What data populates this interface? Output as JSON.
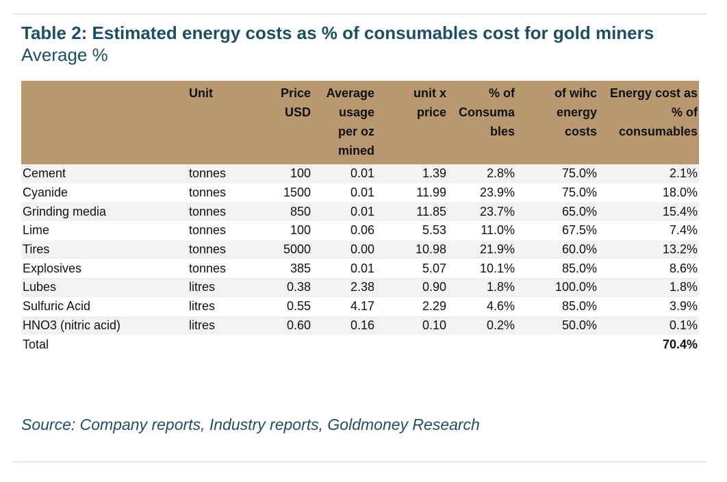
{
  "title": "Table 2: Estimated energy costs as % of consumables cost for gold miners",
  "subtitle": "Average %",
  "table": {
    "headers": [
      {
        "lines": [
          ""
        ]
      },
      {
        "lines": [
          "Unit"
        ]
      },
      {
        "lines": [
          "Price",
          "USD"
        ]
      },
      {
        "lines": [
          "Average",
          "usage",
          "per oz",
          "mined"
        ]
      },
      {
        "lines": [
          "unit x",
          "price"
        ]
      },
      {
        "lines": [
          "% of",
          "Consuma",
          "bles"
        ]
      },
      {
        "lines": [
          "of wihc",
          "energy",
          "costs"
        ]
      },
      {
        "lines": [
          "Energy cost as",
          "% of",
          "consumables"
        ]
      }
    ],
    "rows": [
      {
        "name": "Cement",
        "unit": "tonnes",
        "price": "100",
        "usage": "0.01",
        "unit_price": "1.39",
        "pct_consumables": "2.8%",
        "energy_share": "75.0%",
        "energy_cost": "2.1%"
      },
      {
        "name": "Cyanide",
        "unit": "tonnes",
        "price": "1500",
        "usage": "0.01",
        "unit_price": "11.99",
        "pct_consumables": "23.9%",
        "energy_share": "75.0%",
        "energy_cost": "18.0%"
      },
      {
        "name": "Grinding media",
        "unit": "tonnes",
        "price": "850",
        "usage": "0.01",
        "unit_price": "11.85",
        "pct_consumables": "23.7%",
        "energy_share": "65.0%",
        "energy_cost": "15.4%"
      },
      {
        "name": "Lime",
        "unit": "tonnes",
        "price": "100",
        "usage": "0.06",
        "unit_price": "5.53",
        "pct_consumables": "11.0%",
        "energy_share": "67.5%",
        "energy_cost": "7.4%"
      },
      {
        "name": "Tires",
        "unit": "tonnes",
        "price": "5000",
        "usage": "0.00",
        "unit_price": "10.98",
        "pct_consumables": "21.9%",
        "energy_share": "60.0%",
        "energy_cost": "13.2%"
      },
      {
        "name": "Explosives",
        "unit": "tonnes",
        "price": "385",
        "usage": "0.01",
        "unit_price": "5.07",
        "pct_consumables": "10.1%",
        "energy_share": "85.0%",
        "energy_cost": "8.6%"
      },
      {
        "name": "Lubes",
        "unit": "litres",
        "price": "0.38",
        "usage": "2.38",
        "unit_price": "0.90",
        "pct_consumables": "1.8%",
        "energy_share": "100.0%",
        "energy_cost": "1.8%"
      },
      {
        "name": "Sulfuric Acid",
        "unit": "litres",
        "price": "0.55",
        "usage": "4.17",
        "unit_price": "2.29",
        "pct_consumables": "4.6%",
        "energy_share": "85.0%",
        "energy_cost": "3.9%"
      },
      {
        "name": "HNO3 (nitric acid)",
        "unit": "litres",
        "price": "0.60",
        "usage": "0.16",
        "unit_price": "0.10",
        "pct_consumables": "0.2%",
        "energy_share": "50.0%",
        "energy_cost": "0.1%"
      }
    ],
    "total": {
      "label": "Total",
      "value": "70.4%"
    }
  },
  "source": "Source: Company reports, Industry reports, Goldmoney Research",
  "colors": {
    "header_bg": "#b99771",
    "title": "#1f4e63",
    "row_shade": "#f2f2f2"
  }
}
